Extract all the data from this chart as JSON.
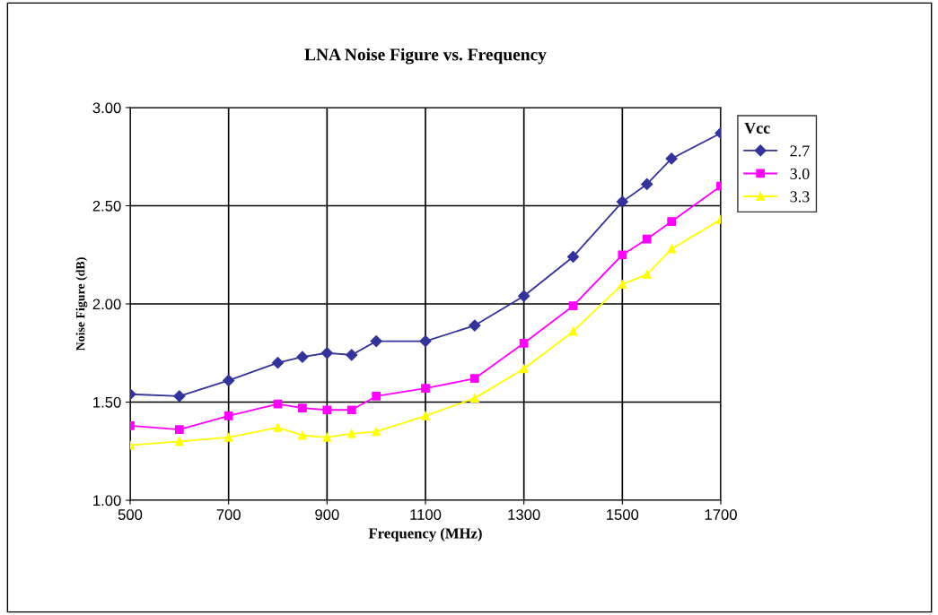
{
  "chart_data": {
    "type": "line",
    "title": "LNA Noise Figure vs. Frequency",
    "xlabel": "Frequency (MHz)",
    "ylabel": "Noise Figure (dB)",
    "legend_title": "Vcc",
    "legend": "right",
    "x": [
      500,
      600,
      700,
      800,
      850,
      900,
      950,
      1000,
      1100,
      1200,
      1300,
      1400,
      1500,
      1550,
      1600,
      1700
    ],
    "series": [
      {
        "name": "2.7",
        "color": "#333399",
        "marker": "diamond",
        "values": [
          1.54,
          1.53,
          1.61,
          1.7,
          1.73,
          1.75,
          1.74,
          1.81,
          1.81,
          1.89,
          2.04,
          2.24,
          2.52,
          2.61,
          2.74,
          2.87
        ]
      },
      {
        "name": "3.0",
        "color": "#ff00ff",
        "marker": "square",
        "values": [
          1.38,
          1.36,
          1.43,
          1.49,
          1.47,
          1.46,
          1.46,
          1.53,
          1.57,
          1.62,
          1.8,
          1.99,
          2.25,
          2.33,
          2.42,
          2.6
        ]
      },
      {
        "name": "3.3",
        "color": "#ffff00",
        "marker": "triangle",
        "values": [
          1.28,
          1.3,
          1.32,
          1.37,
          1.33,
          1.32,
          1.34,
          1.35,
          1.43,
          1.52,
          1.67,
          1.86,
          2.1,
          2.15,
          2.28,
          2.43
        ]
      }
    ],
    "xlim": [
      500,
      1700
    ],
    "xticks": [
      500,
      700,
      900,
      1100,
      1300,
      1500,
      1700
    ],
    "ylim": [
      1.0,
      3.0
    ],
    "yticks": [
      {
        "value": 1.0,
        "label": "1.00"
      },
      {
        "value": 1.5,
        "label": "1.50"
      },
      {
        "value": 2.0,
        "label": "2.00"
      },
      {
        "value": 2.5,
        "label": "2.50"
      },
      {
        "value": 3.0,
        "label": "3.00"
      }
    ],
    "grid": true,
    "line_style": "solid"
  }
}
